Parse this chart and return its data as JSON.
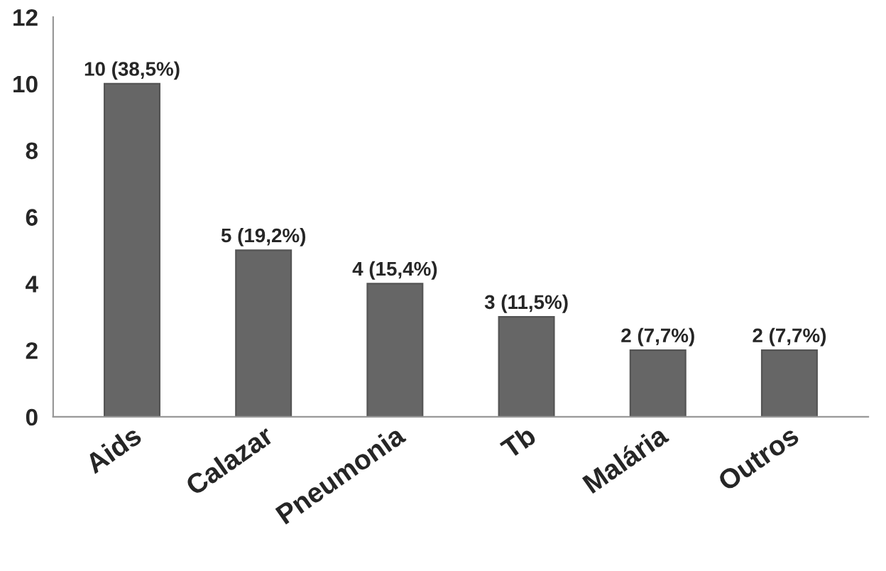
{
  "chart_data": {
    "type": "bar",
    "categories": [
      "Aids",
      "Calazar",
      "Pneumonia",
      "Tb",
      "Malária",
      "Outros"
    ],
    "values": [
      10,
      5,
      4,
      3,
      2,
      2
    ],
    "value_labels": [
      "10 (38,5%)",
      "5 (19,2%)",
      "4 (15,4%)",
      "3 (11,5%)",
      "2 (7,7%)",
      "2 (7,7%)"
    ],
    "color": "#666666",
    "ylim": [
      0,
      12
    ],
    "yticks": [
      0,
      2,
      4,
      6,
      8,
      10,
      12
    ],
    "grid": false,
    "legend": false
  }
}
